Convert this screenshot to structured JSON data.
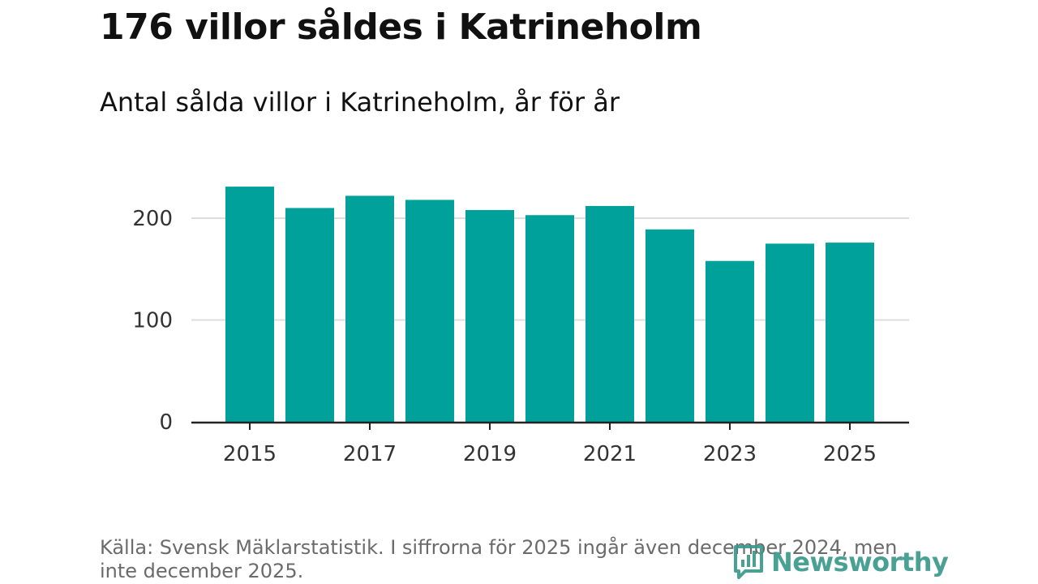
{
  "header": {
    "title": "176 villor såldes i Katrineholm",
    "subtitle": "Antal sålda villor i Katrineholm, år för år"
  },
  "chart_data": {
    "type": "bar",
    "categories": [
      "2015",
      "2016",
      "2017",
      "2018",
      "2019",
      "2020",
      "2021",
      "2022",
      "2023",
      "2024",
      "2025"
    ],
    "values": [
      231,
      210,
      222,
      218,
      208,
      203,
      212,
      189,
      158,
      175,
      176
    ],
    "x_tick_labels": [
      "2015",
      "2017",
      "2019",
      "2021",
      "2023",
      "2025"
    ],
    "y_ticks": [
      0,
      100,
      200
    ],
    "ylim": [
      0,
      232
    ],
    "grid": true,
    "bar_color": "#00a19a"
  },
  "footer": {
    "source": "Källa: Svensk Mäklarstatistik. I siffrorna för 2025 ingår även december 2024, men inte december 2025."
  },
  "brand": {
    "name": "Newsworthy",
    "icon": "newsworthy-logo-icon",
    "color": "#3a9a8c"
  }
}
